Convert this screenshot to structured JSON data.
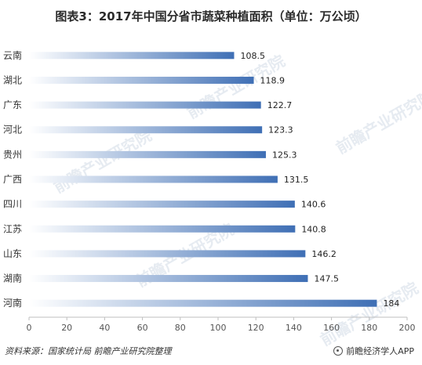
{
  "title": "图表3：2017年中国分省市蔬菜种植面积（单位：万公顷）",
  "watermark": "前瞻产业研究院",
  "footer": {
    "source": "资料来源：国家统计局  前瞻产业研究院整理",
    "brand": "前瞻经济学人APP"
  },
  "colors": {
    "bar_start": "#ffffff",
    "bar_end": "#3f6fb5",
    "axis": "#bfbfbf"
  },
  "chart_data": {
    "type": "bar",
    "orientation": "horizontal",
    "categories": [
      "云南",
      "湖北",
      "广东",
      "河北",
      "贵州",
      "广西",
      "四川",
      "江苏",
      "山东",
      "湖南",
      "河南"
    ],
    "values": [
      108.5,
      118.9,
      122.7,
      123.3,
      125.3,
      131.5,
      140.6,
      140.8,
      146.2,
      147.5,
      184
    ],
    "value_labels": [
      "108.5",
      "118.9",
      "122.7",
      "123.3",
      "125.3",
      "131.5",
      "140.6",
      "140.8",
      "146.2",
      "147.5",
      "184"
    ],
    "xlim": [
      0,
      200
    ],
    "xticks": [
      0,
      20,
      40,
      60,
      80,
      100,
      120,
      140,
      160,
      180,
      200
    ],
    "grid": false,
    "legend": "none"
  }
}
